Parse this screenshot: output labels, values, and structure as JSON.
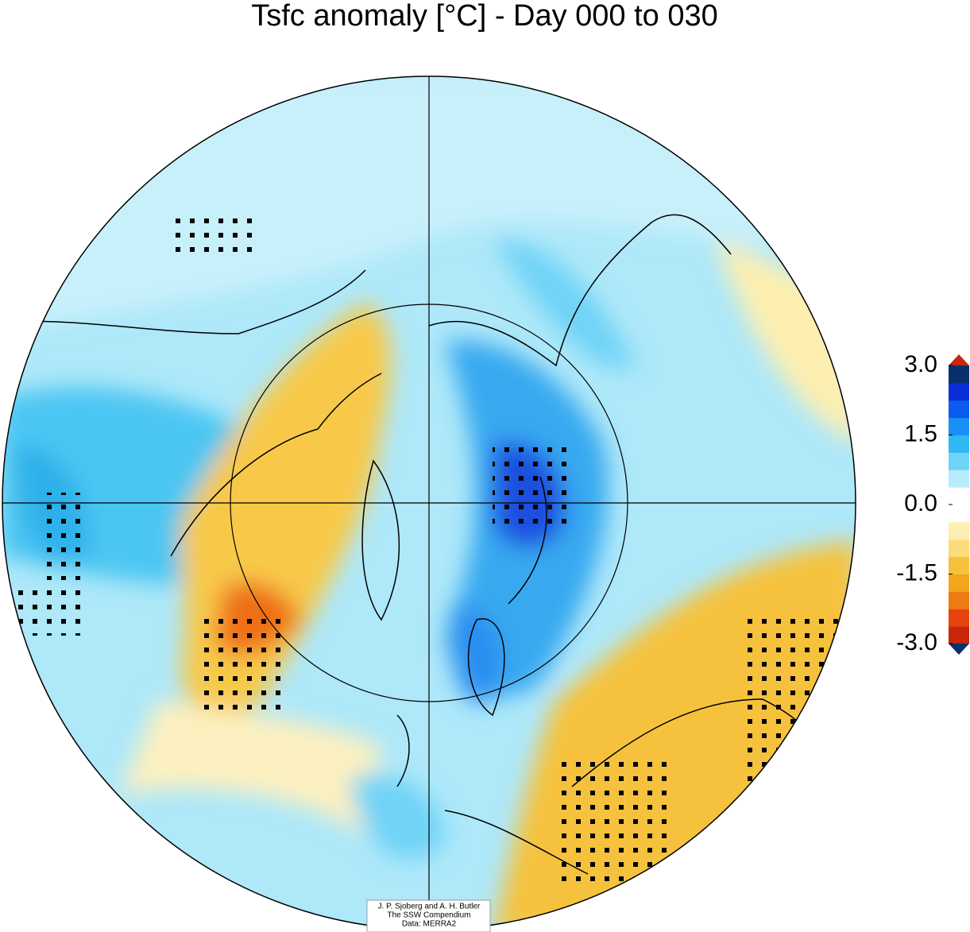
{
  "title": "Tsfc anomaly [°C] - Day 000 to 030",
  "colorbar": {
    "lim": [
      -3,
      3
    ],
    "ticks": [
      {
        "value": 3,
        "label": "3.0"
      },
      {
        "value": 1.5,
        "label": "1.5"
      },
      {
        "value": 0,
        "label": "0.0"
      },
      {
        "value": -1.5,
        "label": "-1.5"
      },
      {
        "value": -3,
        "label": "-3.0"
      }
    ],
    "colors": [
      "#08306b",
      "#0a2fd6",
      "#0a5bf0",
      "#1a8ff5",
      "#2fb8f2",
      "#6fd3f7",
      "#b7ecfb",
      "#ffffff",
      "#ffffff",
      "#fdefb0",
      "#fbdc7a",
      "#f6c23d",
      "#f3a51c",
      "#ee7a12",
      "#e6440e",
      "#c9260a"
    ]
  },
  "credit": [
    "J. P. Sjoberg and A. H. Butler",
    "The SSW Compendium",
    "Data: MERRA2"
  ]
}
